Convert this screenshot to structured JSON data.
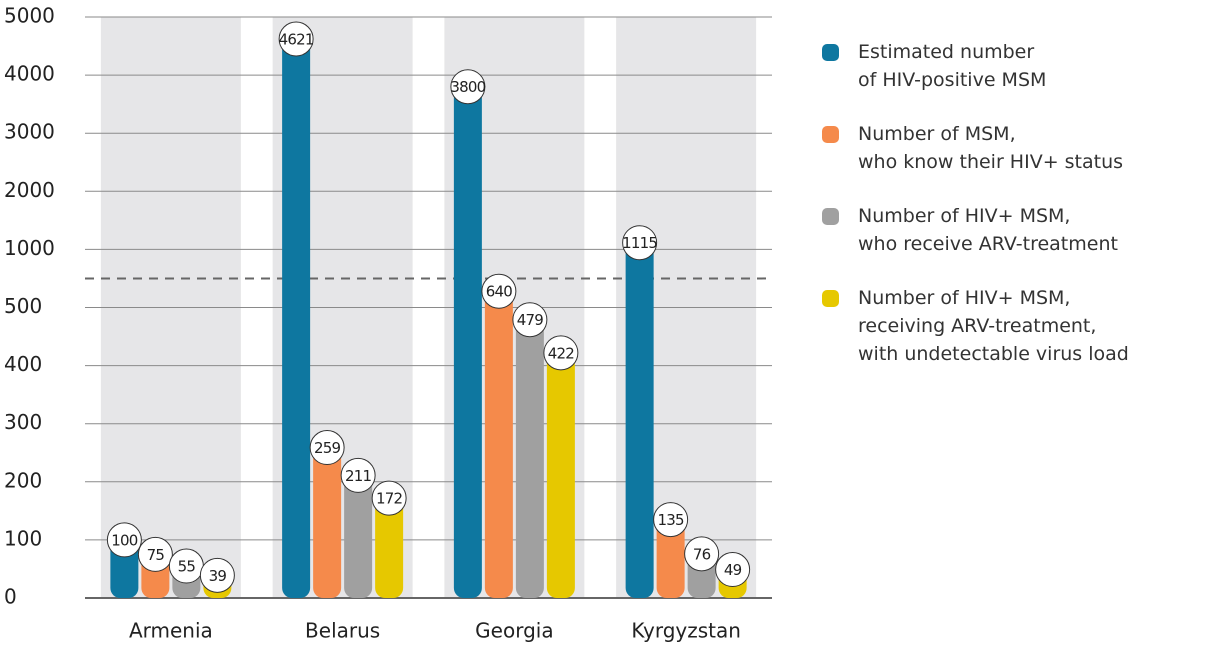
{
  "chart_data": {
    "type": "bar",
    "yscale": "piecewise",
    "categories": [
      "Armenia",
      "Belarus",
      "Georgia",
      "Kyrgyzstan"
    ],
    "series": [
      {
        "name": "Estimated number\nof HIV-positive MSM",
        "color": "#0e77a0",
        "values": [
          100,
          4621,
          3800,
          1115
        ]
      },
      {
        "name": "Number of MSM,\nwho know their HIV+ status",
        "color": "#f58a4b",
        "values": [
          75,
          259,
          640,
          135
        ]
      },
      {
        "name": "Number of HIV+ MSM,\nwho receive ARV-treatment",
        "color": "#a0a0a0",
        "values": [
          55,
          211,
          479,
          76
        ]
      },
      {
        "name": "Number of HIV+ MSM,\nreceiving ARV-treatment,\nwith undetectable virus load",
        "color": "#e6c800",
        "values": [
          39,
          172,
          422,
          49
        ]
      }
    ],
    "ylim": [
      0,
      5000
    ],
    "yticks": [
      0,
      100,
      200,
      300,
      400,
      500,
      1000,
      2000,
      3000,
      4000,
      5000
    ],
    "grid": true
  }
}
